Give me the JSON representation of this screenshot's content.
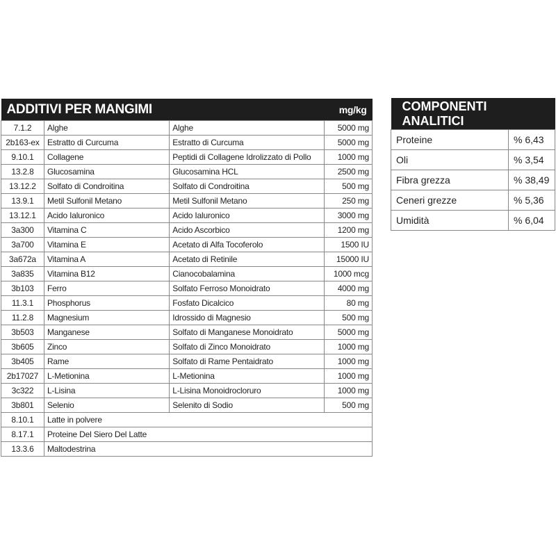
{
  "additivi": {
    "title": "ADDITIVI PER MANGIMI",
    "unit": "mg/kg",
    "rows": [
      [
        "7.1.2",
        "Alghe",
        "Alghe",
        "5000 mg"
      ],
      [
        "2b163-ex",
        "Estratto di Curcuma",
        "Estratto di Curcuma",
        "5000 mg"
      ],
      [
        "9.10.1",
        "Collagene",
        "Peptidi di Collagene Idrolizzato di Pollo",
        "1000 mg"
      ],
      [
        "13.2.8",
        "Glucosamina",
        "Glucosamina HCL",
        "2500 mg"
      ],
      [
        "13.12.2",
        "Solfato di Condroitina",
        "Solfato di Condroitina",
        "500 mg"
      ],
      [
        "13.9.1",
        "Metil Sulfonil Metano",
        "Metil Sulfonil Metano",
        "250 mg"
      ],
      [
        "13.12.1",
        "Acido Ialuronico",
        "Acido Ialuronico",
        "3000 mg"
      ],
      [
        "3a300",
        "Vitamina C",
        "Acido Ascorbico",
        "1200 mg"
      ],
      [
        "3a700",
        "Vitamina E",
        "Acetato di Alfa Tocoferolo",
        "1500 IU"
      ],
      [
        "3a672a",
        "Vitamina A",
        "Acetato di Retinile",
        "15000 IU"
      ],
      [
        "3a835",
        "Vitamina B12",
        "Cianocobalamina",
        "1000 mcg"
      ],
      [
        "3b103",
        "Ferro",
        "Solfato Ferroso Monoidrato",
        "4000 mg"
      ],
      [
        "11.3.1",
        "Phosphorus",
        "Fosfato Dicalcico",
        "80 mg"
      ],
      [
        "11.2.8",
        "Magnesium",
        "Idrossido di Magnesio",
        "500 mg"
      ],
      [
        "3b503",
        "Manganese",
        "Solfato di Manganese Monoidrato",
        "5000 mg"
      ],
      [
        "3b605",
        "Zinco",
        "Solfato di Zinco Monoidrato",
        "1000 mg"
      ],
      [
        "3b405",
        "Rame",
        "Solfato di Rame Pentaidrato",
        "1000 mg"
      ],
      [
        "2b17027",
        "L-Metionina",
        "L-Metionina",
        "1000 mg"
      ],
      [
        "3c322",
        "L-Lisina",
        "L-Lisina Monoidrocloruro",
        "1000 mg"
      ],
      [
        "3b801",
        "Selenio",
        "Selenito di Sodio",
        "500 mg"
      ]
    ],
    "extra_rows": [
      [
        "8.10.1",
        "Latte in polvere"
      ],
      [
        "8.17.1",
        "Proteine Del Siero Del Latte"
      ],
      [
        "13.3.6",
        "Maltodestrina"
      ]
    ]
  },
  "componenti": {
    "title": "COMPONENTI ANALITICI",
    "rows": [
      [
        "Proteine",
        "% 6,43"
      ],
      [
        "Oli",
        "% 3,54"
      ],
      [
        "Fibra grezza",
        "% 38,49"
      ],
      [
        "Ceneri grezze",
        "% 5,36"
      ],
      [
        "Umidità",
        "% 6,04"
      ]
    ]
  }
}
